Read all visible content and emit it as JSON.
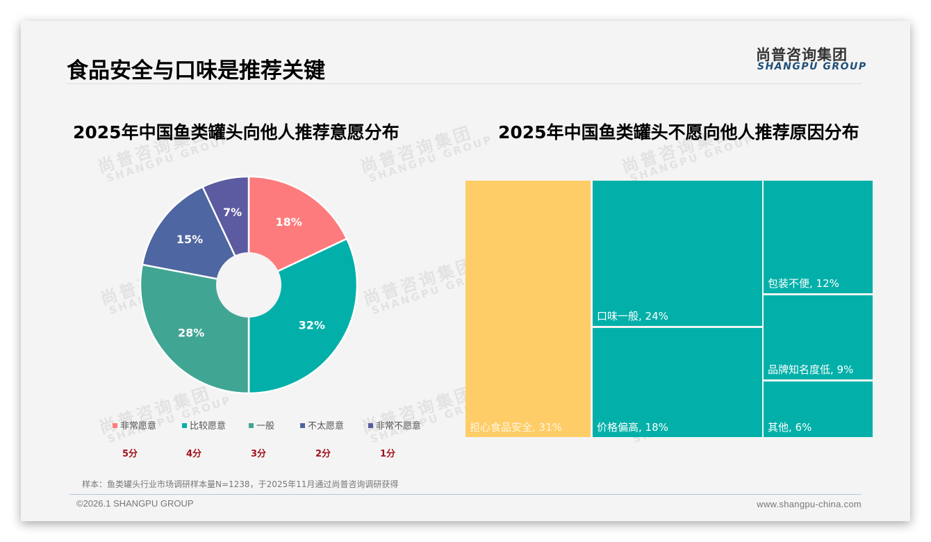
{
  "header": {
    "title": "食品安全与口味是推荐关键",
    "logo_cn": "尚普咨询集团",
    "logo_en": "SHANGPU GROUP"
  },
  "watermark": {
    "cn": "尚普咨询集团",
    "en": "SHANGPU GROUP"
  },
  "left_chart": {
    "title": "2025年中国鱼类罐头向他人推荐意愿分布",
    "segments": [
      {
        "label": "非常愿意",
        "value": 18,
        "display": "18%",
        "color": "#fd7b7c",
        "score": "5分"
      },
      {
        "label": "比较愿意",
        "value": 32,
        "display": "32%",
        "color": "#02b0a9",
        "score": "4分"
      },
      {
        "label": "一般",
        "value": 28,
        "display": "28%",
        "color": "#41a593",
        "score": "3分"
      },
      {
        "label": "不太愿意",
        "value": 15,
        "display": "15%",
        "color": "#4e66a1",
        "score": "2分"
      },
      {
        "label": "非常不愿意",
        "value": 7,
        "display": "7%",
        "color": "#5c5ba1",
        "score": "1分"
      }
    ]
  },
  "right_chart": {
    "title": "2025年中国鱼类罐头不愿向他人推荐原因分布",
    "tiles": [
      {
        "label": "担心食品安全, 31%",
        "value": 31,
        "color": "#fecd67",
        "text_color": "#fff6e0"
      },
      {
        "label": "口味一般, 24%",
        "value": 24,
        "color": "#02b0a9",
        "text_color": "#ffffff"
      },
      {
        "label": "价格偏高, 18%",
        "value": 18,
        "color": "#02b0a9",
        "text_color": "#ffffff"
      },
      {
        "label": "包装不便, 12%",
        "value": 12,
        "color": "#02b0a9",
        "text_color": "#ffffff"
      },
      {
        "label": "品牌知名度低, 9%",
        "value": 9,
        "color": "#02b0a9",
        "text_color": "#ffffff"
      },
      {
        "label": "其他, 6%",
        "value": 6,
        "color": "#02b0a9",
        "text_color": "#ffffff"
      }
    ]
  },
  "footer": {
    "note": "样本：鱼类罐头行业市场调研样本量N=1238，于2025年11月通过尚普咨询调研获得",
    "copyright": "©2026.1 SHANGPU GROUP",
    "website": "www.shangpu-china.com"
  },
  "chart_data": [
    {
      "type": "pie",
      "title": "2025年中国鱼类罐头向他人推荐意愿分布",
      "categories": [
        "非常愿意",
        "比较愿意",
        "一般",
        "不太愿意",
        "非常不愿意"
      ],
      "values": [
        18,
        32,
        28,
        15,
        7
      ],
      "unit": "%",
      "scores": [
        "5分",
        "4分",
        "3分",
        "2分",
        "1分"
      ],
      "donut": true,
      "legend_position": "bottom"
    },
    {
      "type": "treemap",
      "title": "2025年中国鱼类罐头不愿向他人推荐原因分布",
      "categories": [
        "担心食品安全",
        "口味一般",
        "价格偏高",
        "包装不便",
        "品牌知名度低",
        "其他"
      ],
      "values": [
        31,
        24,
        18,
        12,
        9,
        6
      ],
      "unit": "%"
    }
  ]
}
